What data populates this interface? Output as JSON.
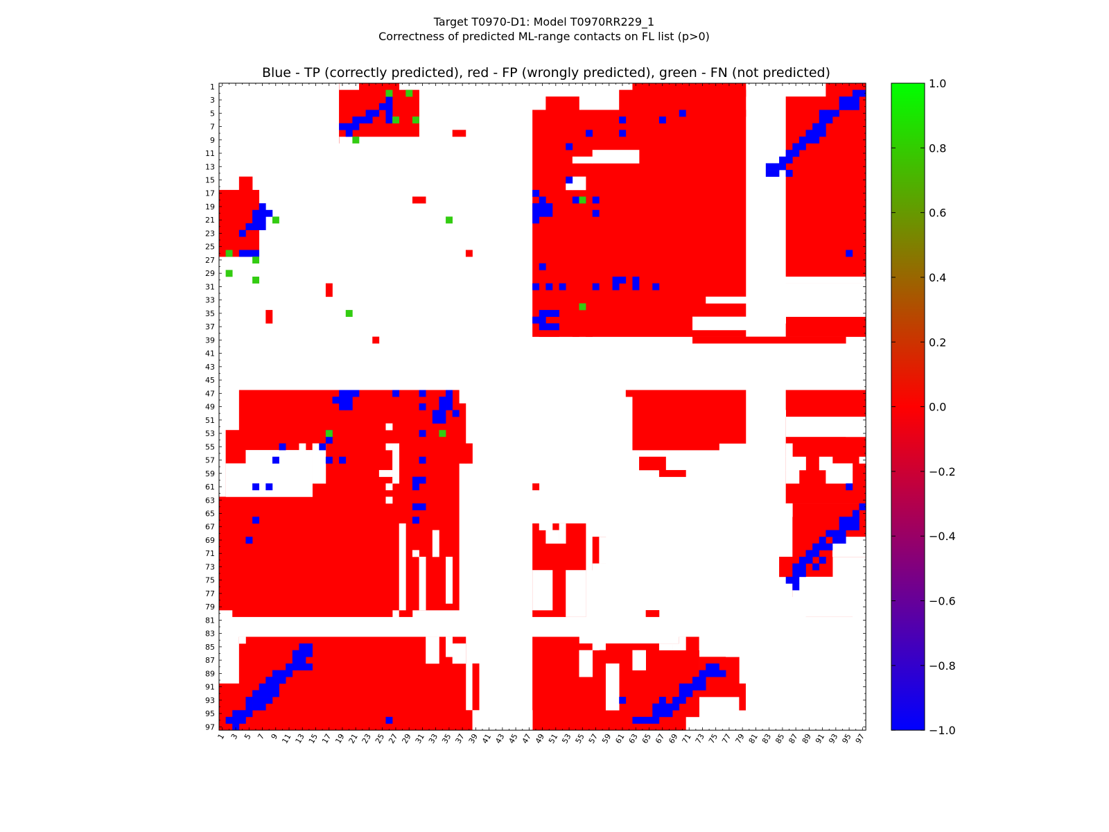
{
  "chart_data": {
    "type": "heatmap",
    "title": "Target T0970-D1: Model T0970RR229_1",
    "subtitle": "Correctness of predicted ML-range contacts on FL list (p>0)",
    "plot_title": "Blue - TP (correctly predicted), red - FP (wrongly predicted), green - FN (not predicted)",
    "xlabel": "",
    "ylabel": "",
    "n": 97,
    "x_ticks": [
      "1",
      "3",
      "5",
      "7",
      "9",
      "11",
      "13",
      "15",
      "17",
      "19",
      "21",
      "23",
      "25",
      "27",
      "29",
      "31",
      "33",
      "35",
      "37",
      "39",
      "41",
      "43",
      "45",
      "47",
      "49",
      "51",
      "53",
      "55",
      "57",
      "59",
      "61",
      "63",
      "65",
      "67",
      "69",
      "71",
      "73",
      "75",
      "77",
      "79",
      "81",
      "83",
      "85",
      "87",
      "89",
      "91",
      "93",
      "95",
      "97"
    ],
    "y_ticks": [
      "1",
      "3",
      "5",
      "7",
      "9",
      "11",
      "13",
      "15",
      "17",
      "19",
      "21",
      "23",
      "25",
      "27",
      "29",
      "31",
      "33",
      "35",
      "37",
      "39",
      "41",
      "43",
      "45",
      "47",
      "49",
      "51",
      "53",
      "55",
      "57",
      "59",
      "61",
      "63",
      "65",
      "67",
      "69",
      "71",
      "73",
      "75",
      "77",
      "79",
      "81",
      "83",
      "85",
      "87",
      "89",
      "91",
      "93",
      "95",
      "97"
    ],
    "colorbar": {
      "min": -1.0,
      "max": 1.0,
      "ticks": [
        "1.0",
        "0.8",
        "0.6",
        "0.4",
        "0.2",
        "0.0",
        "−0.2",
        "−0.4",
        "−0.6",
        "−0.8",
        "−1.0"
      ],
      "colors": [
        "#0000ff",
        "#ff0000",
        "#00ff00"
      ]
    },
    "colors": {
      "TP": "#0000ff",
      "FP": "#ff0000",
      "FN": "#33cc11"
    },
    "fp_rects": [
      [
        19,
        1,
        18,
        9
      ],
      [
        19,
        2,
        30,
        8
      ],
      [
        22,
        1,
        27,
        3
      ],
      [
        48,
        5,
        79,
        38
      ],
      [
        50,
        3,
        54,
        5
      ],
      [
        61,
        2,
        79,
        5
      ],
      [
        63,
        1,
        79,
        2
      ],
      [
        86,
        3,
        97,
        38
      ],
      [
        92,
        1,
        97,
        3
      ],
      [
        36,
        8,
        37,
        8
      ],
      [
        30,
        18,
        31,
        18
      ],
      [
        38,
        26,
        38,
        26
      ],
      [
        17,
        31,
        17,
        32
      ],
      [
        8,
        35,
        8,
        36
      ],
      [
        24,
        39,
        24,
        39
      ],
      [
        72,
        39,
        94,
        39
      ],
      [
        49,
        38,
        51,
        38
      ],
      [
        54,
        38,
        54,
        38
      ],
      [
        56,
        38,
        56,
        38
      ],
      [
        1,
        17,
        6,
        26
      ],
      [
        4,
        15,
        5,
        16
      ],
      [
        2,
        26,
        2,
        26
      ],
      [
        4,
        47,
        36,
        79
      ],
      [
        37,
        49,
        37,
        57
      ],
      [
        38,
        55,
        38,
        57
      ],
      [
        2,
        53,
        3,
        63
      ],
      [
        1,
        63,
        3,
        79
      ],
      [
        3,
        80,
        26,
        80
      ],
      [
        28,
        80,
        29,
        80
      ],
      [
        63,
        47,
        79,
        54
      ],
      [
        63,
        55,
        75,
        55
      ],
      [
        64,
        57,
        67,
        58
      ],
      [
        67,
        59,
        70,
        59
      ],
      [
        48,
        61,
        48,
        61
      ],
      [
        86,
        47,
        97,
        61
      ],
      [
        86,
        62,
        97,
        63
      ],
      [
        87,
        64,
        97,
        65
      ],
      [
        87,
        66,
        92,
        77
      ],
      [
        92,
        66,
        97,
        71
      ],
      [
        85,
        72,
        92,
        74
      ],
      [
        89,
        78,
        95,
        80
      ],
      [
        62,
        47,
        62,
        47
      ],
      [
        48,
        67,
        55,
        80
      ],
      [
        57,
        69,
        58,
        73
      ],
      [
        65,
        80,
        66,
        80
      ],
      [
        1,
        91,
        36,
        97
      ],
      [
        4,
        84,
        36,
        90
      ],
      [
        37,
        84,
        37,
        94
      ],
      [
        39,
        88,
        39,
        94
      ],
      [
        48,
        84,
        54,
        97
      ],
      [
        55,
        85,
        56,
        97
      ],
      [
        57,
        86,
        58,
        97
      ],
      [
        59,
        85,
        60,
        97
      ],
      [
        61,
        85,
        62,
        97
      ],
      [
        63,
        85,
        70,
        97
      ],
      [
        70,
        84,
        72,
        95
      ],
      [
        73,
        87,
        78,
        92
      ],
      [
        79,
        91,
        79,
        94
      ],
      [
        37,
        95,
        38,
        97
      ]
    ],
    "white_rects": [
      [
        57,
        11,
        63,
        12
      ],
      [
        54,
        12,
        56,
        12
      ],
      [
        54,
        15,
        55,
        16
      ],
      [
        53,
        16,
        53,
        16
      ],
      [
        81,
        30,
        97,
        30
      ],
      [
        82,
        31,
        97,
        32
      ],
      [
        84,
        34,
        97,
        35
      ],
      [
        74,
        33,
        97,
        33
      ],
      [
        72,
        36,
        80,
        37
      ],
      [
        85,
        36,
        85,
        36
      ],
      [
        5,
        56,
        14,
        57
      ],
      [
        2,
        58,
        14,
        62
      ],
      [
        13,
        55,
        13,
        61
      ],
      [
        15,
        55,
        16,
        60
      ],
      [
        27,
        55,
        27,
        60
      ],
      [
        26,
        52,
        26,
        52
      ],
      [
        26,
        55,
        26,
        55
      ],
      [
        26,
        61,
        26,
        61
      ],
      [
        26,
        63,
        26,
        63
      ],
      [
        25,
        59,
        26,
        59
      ],
      [
        28,
        67,
        28,
        79
      ],
      [
        31,
        72,
        31,
        79
      ],
      [
        35,
        72,
        35,
        78
      ],
      [
        33,
        68,
        33,
        71
      ],
      [
        30,
        71,
        30,
        71
      ],
      [
        85,
        50,
        85,
        50
      ],
      [
        86,
        51,
        97,
        53
      ],
      [
        95,
        51,
        97,
        53
      ],
      [
        86,
        55,
        86,
        56
      ],
      [
        86,
        57,
        88,
        58
      ],
      [
        91,
        57,
        92,
        57
      ],
      [
        97,
        57,
        97,
        57
      ],
      [
        86,
        59,
        87,
        60
      ],
      [
        91,
        58,
        95,
        58
      ],
      [
        92,
        59,
        95,
        60
      ],
      [
        86,
        64,
        86,
        65
      ],
      [
        93,
        69,
        97,
        71
      ],
      [
        87,
        75,
        97,
        80
      ],
      [
        95,
        75,
        97,
        76
      ],
      [
        57,
        73,
        60,
        80
      ],
      [
        58,
        69,
        59,
        72
      ],
      [
        53,
        74,
        55,
        80
      ],
      [
        48,
        74,
        50,
        79
      ],
      [
        50,
        68,
        51,
        69
      ],
      [
        49,
        66,
        50,
        67
      ],
      [
        52,
        67,
        52,
        69
      ],
      [
        4,
        84,
        4,
        84
      ],
      [
        36,
        85,
        37,
        87
      ],
      [
        32,
        84,
        33,
        87
      ],
      [
        35,
        84,
        35,
        86
      ],
      [
        55,
        86,
        56,
        89
      ],
      [
        57,
        85,
        57,
        85
      ],
      [
        59,
        88,
        60,
        94
      ],
      [
        63,
        86,
        64,
        88
      ],
      [
        67,
        85,
        68,
        85
      ],
      [
        69,
        85,
        69,
        85
      ],
      [
        70,
        84,
        70,
        85
      ],
      [
        73,
        84,
        76,
        85
      ],
      [
        77,
        86,
        78,
        86
      ],
      [
        80,
        86,
        84,
        97
      ],
      [
        39,
        95,
        47,
        97
      ]
    ],
    "tp_cells": [
      [
        26,
        3
      ],
      [
        26,
        4
      ],
      [
        26,
        5
      ],
      [
        26,
        6
      ],
      [
        25,
        4
      ],
      [
        24,
        5
      ],
      [
        23,
        5
      ],
      [
        23,
        6
      ],
      [
        22,
        6
      ],
      [
        21,
        6
      ],
      [
        21,
        7
      ],
      [
        20,
        7
      ],
      [
        19,
        7
      ],
      [
        20,
        8
      ],
      [
        70,
        5
      ],
      [
        61,
        6
      ],
      [
        67,
        6
      ],
      [
        56,
        8
      ],
      [
        61,
        8
      ],
      [
        53,
        10
      ],
      [
        53,
        15
      ],
      [
        48,
        17
      ],
      [
        49,
        18
      ],
      [
        48,
        19
      ],
      [
        49,
        19
      ],
      [
        50,
        19
      ],
      [
        48,
        20
      ],
      [
        49,
        20
      ],
      [
        50,
        20
      ],
      [
        48,
        21
      ],
      [
        54,
        18
      ],
      [
        55,
        18
      ],
      [
        57,
        18
      ],
      [
        57,
        20
      ],
      [
        49,
        28
      ],
      [
        48,
        31
      ],
      [
        50,
        31
      ],
      [
        52,
        31
      ],
      [
        57,
        31
      ],
      [
        60,
        30
      ],
      [
        60,
        31
      ],
      [
        61,
        30
      ],
      [
        63,
        30
      ],
      [
        63,
        31
      ],
      [
        66,
        31
      ],
      [
        49,
        35
      ],
      [
        50,
        35
      ],
      [
        51,
        35
      ],
      [
        48,
        36
      ],
      [
        49,
        36
      ],
      [
        49,
        37
      ],
      [
        50,
        37
      ],
      [
        51,
        37
      ],
      [
        97,
        2
      ],
      [
        96,
        2
      ],
      [
        96,
        3
      ],
      [
        95,
        3
      ],
      [
        94,
        3
      ],
      [
        96,
        4
      ],
      [
        95,
        4
      ],
      [
        94,
        4
      ],
      [
        93,
        5
      ],
      [
        92,
        5
      ],
      [
        91,
        5
      ],
      [
        92,
        6
      ],
      [
        91,
        6
      ],
      [
        90,
        7
      ],
      [
        91,
        7
      ],
      [
        89,
        8
      ],
      [
        90,
        8
      ],
      [
        91,
        8
      ],
      [
        88,
        9
      ],
      [
        89,
        9
      ],
      [
        90,
        9
      ],
      [
        87,
        10
      ],
      [
        88,
        10
      ],
      [
        86,
        11
      ],
      [
        87,
        11
      ],
      [
        85,
        12
      ],
      [
        86,
        12
      ],
      [
        83,
        13
      ],
      [
        84,
        13
      ],
      [
        85,
        13
      ],
      [
        83,
        14
      ],
      [
        84,
        14
      ],
      [
        86,
        14
      ],
      [
        95,
        26
      ],
      [
        7,
        19
      ],
      [
        6,
        20
      ],
      [
        7,
        20
      ],
      [
        8,
        20
      ],
      [
        6,
        21
      ],
      [
        7,
        21
      ],
      [
        5,
        22
      ],
      [
        6,
        22
      ],
      [
        7,
        22
      ],
      [
        4,
        23
      ],
      [
        4,
        26
      ],
      [
        5,
        26
      ],
      [
        6,
        26
      ],
      [
        21,
        47
      ],
      [
        20,
        47
      ],
      [
        19,
        47
      ],
      [
        19,
        48
      ],
      [
        20,
        48
      ],
      [
        18,
        48
      ],
      [
        19,
        49
      ],
      [
        20,
        49
      ],
      [
        27,
        47
      ],
      [
        31,
        47
      ],
      [
        35,
        47
      ],
      [
        34,
        48
      ],
      [
        35,
        48
      ],
      [
        31,
        49
      ],
      [
        34,
        49
      ],
      [
        35,
        49
      ],
      [
        34,
        50
      ],
      [
        33,
        50
      ],
      [
        36,
        50
      ],
      [
        34,
        51
      ],
      [
        33,
        51
      ],
      [
        31,
        53
      ],
      [
        17,
        53
      ],
      [
        17,
        54
      ],
      [
        10,
        55
      ],
      [
        16,
        55
      ],
      [
        17,
        57
      ],
      [
        19,
        57
      ],
      [
        9,
        57
      ],
      [
        31,
        57
      ],
      [
        30,
        60
      ],
      [
        31,
        60
      ],
      [
        30,
        61
      ],
      [
        6,
        61
      ],
      [
        8,
        61
      ],
      [
        30,
        64
      ],
      [
        31,
        64
      ],
      [
        30,
        66
      ],
      [
        6,
        66
      ],
      [
        5,
        69
      ],
      [
        97,
        64
      ],
      [
        96,
        65
      ],
      [
        96,
        66
      ],
      [
        95,
        66
      ],
      [
        94,
        66
      ],
      [
        96,
        67
      ],
      [
        95,
        67
      ],
      [
        94,
        67
      ],
      [
        93,
        68
      ],
      [
        94,
        68
      ],
      [
        92,
        68
      ],
      [
        93,
        69
      ],
      [
        94,
        69
      ],
      [
        91,
        69
      ],
      [
        90,
        70
      ],
      [
        91,
        70
      ],
      [
        92,
        70
      ],
      [
        89,
        71
      ],
      [
        90,
        71
      ],
      [
        88,
        72
      ],
      [
        89,
        72
      ],
      [
        91,
        72
      ],
      [
        87,
        73
      ],
      [
        88,
        73
      ],
      [
        90,
        73
      ],
      [
        87,
        74
      ],
      [
        88,
        74
      ],
      [
        86,
        75
      ],
      [
        87,
        75
      ],
      [
        87,
        76
      ],
      [
        95,
        61
      ],
      [
        13,
        85
      ],
      [
        14,
        85
      ],
      [
        12,
        86
      ],
      [
        13,
        86
      ],
      [
        14,
        86
      ],
      [
        12,
        87
      ],
      [
        13,
        87
      ],
      [
        12,
        88
      ],
      [
        13,
        88
      ],
      [
        14,
        88
      ],
      [
        11,
        88
      ],
      [
        9,
        89
      ],
      [
        10,
        89
      ],
      [
        11,
        89
      ],
      [
        9,
        90
      ],
      [
        10,
        90
      ],
      [
        8,
        90
      ],
      [
        7,
        91
      ],
      [
        8,
        91
      ],
      [
        9,
        91
      ],
      [
        7,
        92
      ],
      [
        8,
        92
      ],
      [
        6,
        92
      ],
      [
        9,
        92
      ],
      [
        5,
        93
      ],
      [
        6,
        93
      ],
      [
        7,
        93
      ],
      [
        8,
        93
      ],
      [
        5,
        94
      ],
      [
        6,
        94
      ],
      [
        7,
        94
      ],
      [
        3,
        95
      ],
      [
        4,
        95
      ],
      [
        5,
        95
      ],
      [
        2,
        96
      ],
      [
        3,
        96
      ],
      [
        4,
        96
      ],
      [
        3,
        97
      ],
      [
        26,
        96
      ],
      [
        75,
        88
      ],
      [
        74,
        88
      ],
      [
        73,
        89
      ],
      [
        74,
        89
      ],
      [
        75,
        89
      ],
      [
        73,
        90
      ],
      [
        72,
        90
      ],
      [
        76,
        89
      ],
      [
        71,
        91
      ],
      [
        72,
        91
      ],
      [
        70,
        91
      ],
      [
        73,
        91
      ],
      [
        70,
        92
      ],
      [
        71,
        92
      ],
      [
        69,
        93
      ],
      [
        70,
        93
      ],
      [
        67,
        93
      ],
      [
        68,
        94
      ],
      [
        69,
        94
      ],
      [
        67,
        94
      ],
      [
        66,
        94
      ],
      [
        66,
        95
      ],
      [
        67,
        95
      ],
      [
        68,
        95
      ],
      [
        65,
        96
      ],
      [
        66,
        96
      ],
      [
        63,
        96
      ],
      [
        64,
        96
      ],
      [
        61,
        93
      ]
    ],
    "fn_cells": [
      [
        26,
        2
      ],
      [
        29,
        2
      ],
      [
        27,
        6
      ],
      [
        30,
        6
      ],
      [
        21,
        9
      ],
      [
        55,
        18
      ],
      [
        35,
        21
      ],
      [
        9,
        21
      ],
      [
        2,
        26
      ],
      [
        6,
        27
      ],
      [
        2,
        29
      ],
      [
        6,
        30
      ],
      [
        20,
        35
      ],
      [
        55,
        34
      ],
      [
        17,
        53
      ],
      [
        34,
        53
      ]
    ]
  }
}
